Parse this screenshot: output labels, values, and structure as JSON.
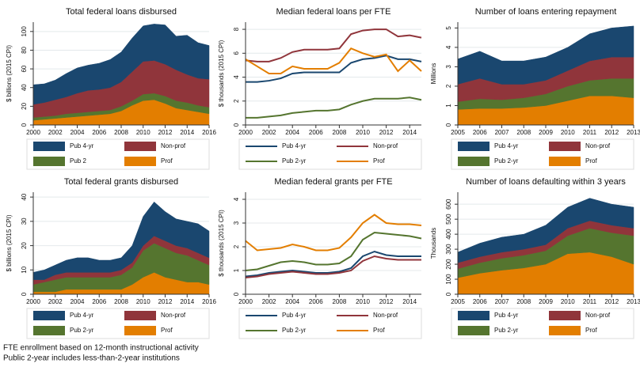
{
  "chart_data": [
    {
      "type": "area",
      "title": "Total federal loans disbursed",
      "ylabel": "$ billions (2015 CPI)",
      "x": [
        2000,
        2001,
        2002,
        2003,
        2004,
        2005,
        2006,
        2007,
        2008,
        2009,
        2010,
        2011,
        2012,
        2013,
        2014,
        2015,
        2016
      ],
      "xlim": [
        2000,
        2016
      ],
      "xticks": [
        2000,
        2002,
        2004,
        2006,
        2008,
        2010,
        2012,
        2014,
        2016
      ],
      "ylim": [
        0,
        110
      ],
      "yticks": [
        0,
        20,
        40,
        60,
        80,
        100
      ],
      "grid": true,
      "series": [
        {
          "name": "Pub 4-yr",
          "color": "#1a476f",
          "values": [
            21,
            20,
            21,
            25,
            27,
            27,
            28,
            30,
            32,
            36,
            38,
            39,
            42,
            36,
            42,
            38,
            36
          ]
        },
        {
          "name": "Non-prof",
          "color": "#90353b",
          "values": [
            14,
            15,
            17,
            18,
            21,
            23,
            23,
            24,
            26,
            31,
            35,
            35,
            34,
            33,
            30,
            29,
            30
          ]
        },
        {
          "name": "Pub 2",
          "color": "#55752f",
          "values": [
            3,
            3,
            3,
            4,
            4,
            4,
            4,
            4,
            5,
            5,
            7,
            7,
            8,
            8,
            8,
            7,
            7
          ]
        },
        {
          "name": "Prof",
          "color": "#e37e00",
          "values": [
            5,
            6,
            7,
            8,
            9,
            10,
            11,
            12,
            15,
            21,
            26,
            27,
            23,
            18,
            16,
            14,
            12
          ]
        }
      ]
    },
    {
      "type": "line",
      "title": "Median federal loans per FTE",
      "ylabel": "$ thousands (2015 CPI)",
      "x": [
        2000,
        2001,
        2002,
        2003,
        2004,
        2005,
        2006,
        2007,
        2008,
        2009,
        2010,
        2011,
        2012,
        2013,
        2014,
        2015
      ],
      "xlim": [
        2000,
        2015
      ],
      "xticks": [
        2000,
        2002,
        2004,
        2006,
        2008,
        2010,
        2012,
        2014
      ],
      "ylim": [
        0,
        8.6
      ],
      "yticks": [
        0,
        2,
        4,
        6,
        8
      ],
      "grid": true,
      "series": [
        {
          "name": "Pub 4-yr",
          "color": "#1a476f",
          "values": [
            3.6,
            3.6,
            3.7,
            3.9,
            4.3,
            4.4,
            4.4,
            4.4,
            4.4,
            5.2,
            5.5,
            5.6,
            5.8,
            5.5,
            5.5,
            5.3
          ]
        },
        {
          "name": "Non-prof",
          "color": "#90353b",
          "values": [
            5.4,
            5.3,
            5.3,
            5.6,
            6.1,
            6.3,
            6.3,
            6.3,
            6.4,
            7.6,
            7.9,
            8.0,
            8.0,
            7.4,
            7.5,
            7.3
          ]
        },
        {
          "name": "Pub 2-yr",
          "color": "#55752f",
          "values": [
            0.6,
            0.6,
            0.7,
            0.8,
            1.0,
            1.1,
            1.2,
            1.2,
            1.3,
            1.7,
            2.0,
            2.2,
            2.2,
            2.2,
            2.3,
            2.1
          ]
        },
        {
          "name": "Prof",
          "color": "#e37e00",
          "values": [
            5.5,
            4.9,
            4.3,
            4.3,
            4.9,
            4.7,
            4.7,
            4.7,
            5.2,
            6.4,
            6.0,
            5.7,
            5.9,
            4.5,
            5.4,
            4.5
          ]
        }
      ]
    },
    {
      "type": "area",
      "title": "Number of loans entering repayment",
      "ylabel": "Millions",
      "x": [
        2005,
        2006,
        2007,
        2008,
        2009,
        2010,
        2011,
        2012,
        2013
      ],
      "xlim": [
        2005,
        2013
      ],
      "xticks": [
        2005,
        2006,
        2007,
        2008,
        2009,
        2010,
        2011,
        2012,
        2013
      ],
      "ylim": [
        0,
        5.3
      ],
      "yticks": [
        0,
        1,
        2,
        3,
        4,
        5
      ],
      "grid": true,
      "series": [
        {
          "name": "Pub 4-yr",
          "color": "#1a476f",
          "values": [
            1.3,
            1.4,
            1.2,
            1.2,
            1.2,
            1.2,
            1.4,
            1.5,
            1.6
          ]
        },
        {
          "name": "Non-prof",
          "color": "#90353b",
          "values": [
            0.9,
            1.05,
            0.8,
            0.7,
            0.7,
            0.8,
            1.0,
            1.1,
            1.1
          ]
        },
        {
          "name": "Pub 2-yr",
          "color": "#55752f",
          "values": [
            0.4,
            0.5,
            0.45,
            0.5,
            0.6,
            0.75,
            0.8,
            0.9,
            1.0
          ]
        },
        {
          "name": "Prof",
          "color": "#e37e00",
          "values": [
            0.8,
            0.85,
            0.85,
            0.9,
            1.0,
            1.25,
            1.5,
            1.5,
            1.4
          ]
        }
      ]
    },
    {
      "type": "area",
      "title": "Total federal grants disbursed",
      "ylabel": "$ billions (2015 CPI)",
      "x": [
        2000,
        2001,
        2002,
        2003,
        2004,
        2005,
        2006,
        2007,
        2008,
        2009,
        2010,
        2011,
        2012,
        2013,
        2014,
        2015,
        2016
      ],
      "xlim": [
        2000,
        2016
      ],
      "xticks": [
        2000,
        2002,
        2004,
        2006,
        2008,
        2010,
        2012,
        2014,
        2016
      ],
      "ylim": [
        0,
        42
      ],
      "yticks": [
        0,
        10,
        20,
        30,
        40
      ],
      "grid": true,
      "series": [
        {
          "name": "Pub 4-yr",
          "color": "#1a476f",
          "values": [
            3,
            4,
            4,
            5,
            6,
            6,
            5,
            5,
            5,
            7,
            12,
            14,
            12,
            11,
            11,
            12,
            11
          ]
        },
        {
          "name": "Non-prof",
          "color": "#90353b",
          "values": [
            2,
            1,
            2,
            2,
            2,
            2,
            2,
            2,
            2,
            2,
            2,
            3,
            3,
            3,
            3,
            3,
            3
          ]
        },
        {
          "name": "Pub 2-yr",
          "color": "#55752f",
          "values": [
            3,
            4,
            5,
            5,
            5,
            5,
            5,
            5,
            6,
            7,
            11,
            12,
            12,
            11,
            11,
            9,
            8
          ]
        },
        {
          "name": "Prof",
          "color": "#e37e00",
          "values": [
            1,
            1,
            1,
            2,
            2,
            2,
            2,
            2,
            2,
            4,
            7,
            9,
            7,
            6,
            5,
            5,
            4
          ]
        }
      ]
    },
    {
      "type": "line",
      "title": "Median federal grants per FTE",
      "ylabel": "$ thousands (2015 CPI)",
      "x": [
        2000,
        2001,
        2002,
        2003,
        2004,
        2005,
        2006,
        2007,
        2008,
        2009,
        2010,
        2011,
        2012,
        2013,
        2014,
        2015
      ],
      "xlim": [
        2000,
        2015
      ],
      "xticks": [
        2000,
        2002,
        2004,
        2006,
        2008,
        2010,
        2012,
        2014
      ],
      "ylim": [
        0,
        4.3
      ],
      "yticks": [
        0,
        1,
        2,
        3,
        4
      ],
      "grid": true,
      "series": [
        {
          "name": "Pub 4-yr",
          "color": "#1a476f",
          "values": [
            0.75,
            0.8,
            0.9,
            0.95,
            1.0,
            0.95,
            0.9,
            0.9,
            0.95,
            1.1,
            1.6,
            1.8,
            1.65,
            1.6,
            1.6,
            1.6
          ]
        },
        {
          "name": "Non-prof",
          "color": "#90353b",
          "values": [
            0.7,
            0.75,
            0.85,
            0.9,
            0.95,
            0.9,
            0.85,
            0.85,
            0.9,
            1.0,
            1.4,
            1.6,
            1.5,
            1.45,
            1.45,
            1.45
          ]
        },
        {
          "name": "Pub 2-yr",
          "color": "#55752f",
          "values": [
            1.0,
            1.05,
            1.2,
            1.35,
            1.4,
            1.35,
            1.25,
            1.25,
            1.3,
            1.6,
            2.3,
            2.6,
            2.55,
            2.5,
            2.45,
            2.35
          ]
        },
        {
          "name": "Prof",
          "color": "#e37e00",
          "values": [
            2.25,
            1.85,
            1.9,
            1.95,
            2.1,
            2.0,
            1.85,
            1.85,
            1.95,
            2.4,
            3.0,
            3.35,
            3.0,
            2.95,
            2.95,
            2.9
          ]
        }
      ]
    },
    {
      "type": "area",
      "title": "Number of loans defaulting within 3 years",
      "ylabel": "Thousands",
      "x": [
        2005,
        2006,
        2007,
        2008,
        2009,
        2010,
        2011,
        2012,
        2013
      ],
      "xlim": [
        2005,
        2013
      ],
      "xticks": [
        2005,
        2006,
        2007,
        2008,
        2009,
        2010,
        2011,
        2012,
        2013
      ],
      "ylim": [
        0,
        680
      ],
      "yticks": [
        0,
        100,
        200,
        300,
        400,
        500,
        600
      ],
      "grid": true,
      "series": [
        {
          "name": "Pub 4-yr",
          "color": "#1a476f",
          "values": [
            70,
            90,
            100,
            100,
            130,
            140,
            150,
            140,
            140
          ]
        },
        {
          "name": "Non-prof",
          "color": "#90353b",
          "values": [
            40,
            40,
            40,
            40,
            40,
            50,
            50,
            50,
            50
          ]
        },
        {
          "name": "Pub 2-yr",
          "color": "#55752f",
          "values": [
            60,
            70,
            80,
            85,
            90,
            120,
            160,
            160,
            190
          ]
        },
        {
          "name": "Prof",
          "color": "#e37e00",
          "values": [
            110,
            140,
            160,
            175,
            200,
            270,
            280,
            250,
            200
          ]
        }
      ]
    }
  ],
  "notes": [
    "FTE enrollment based on 12-month instructional activity",
    "Public 2-year includes less-than-2-year institutions"
  ]
}
